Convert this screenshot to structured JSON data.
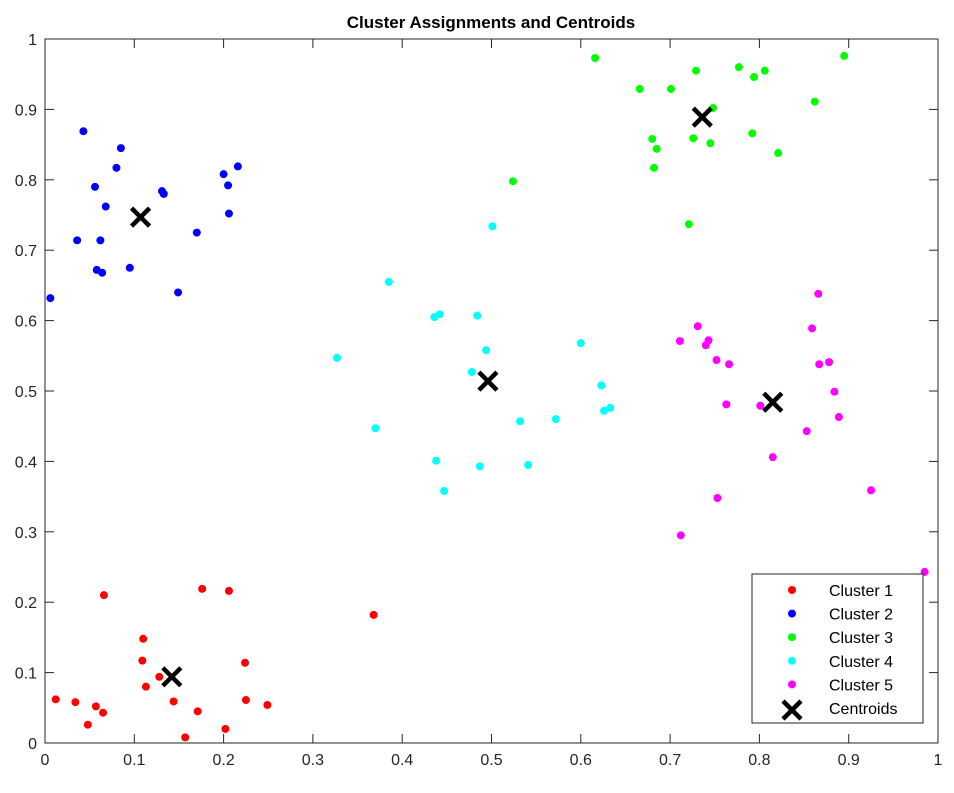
{
  "chart_data": {
    "type": "scatter",
    "title": "Cluster Assignments and Centroids",
    "xlabel": "",
    "ylabel": "",
    "xlim": [
      0,
      1
    ],
    "ylim": [
      0,
      1
    ],
    "grid": false,
    "legend_position": "southeast",
    "x_ticks": [
      "0",
      "0.1",
      "0.2",
      "0.3",
      "0.4",
      "0.5",
      "0.6",
      "0.7",
      "0.8",
      "0.9",
      "1"
    ],
    "y_ticks": [
      "0",
      "0.1",
      "0.2",
      "0.3",
      "0.4",
      "0.5",
      "0.6",
      "0.7",
      "0.8",
      "0.9",
      "1"
    ],
    "series": [
      {
        "name": "Cluster 1",
        "color": "#ff0000",
        "marker": "dot",
        "points": [
          [
            0.012,
            0.062
          ],
          [
            0.034,
            0.058
          ],
          [
            0.048,
            0.026
          ],
          [
            0.057,
            0.052
          ],
          [
            0.065,
            0.043
          ],
          [
            0.066,
            0.21
          ],
          [
            0.11,
            0.148
          ],
          [
            0.109,
            0.117
          ],
          [
            0.113,
            0.08
          ],
          [
            0.128,
            0.094
          ],
          [
            0.144,
            0.059
          ],
          [
            0.157,
            0.008
          ],
          [
            0.171,
            0.045
          ],
          [
            0.176,
            0.219
          ],
          [
            0.206,
            0.216
          ],
          [
            0.202,
            0.02
          ],
          [
            0.224,
            0.114
          ],
          [
            0.225,
            0.061
          ],
          [
            0.249,
            0.054
          ],
          [
            0.368,
            0.182
          ]
        ]
      },
      {
        "name": "Cluster 2",
        "color": "#0000ff",
        "marker": "dot",
        "points": [
          [
            0.006,
            0.632
          ],
          [
            0.043,
            0.869
          ],
          [
            0.085,
            0.845
          ],
          [
            0.08,
            0.817
          ],
          [
            0.056,
            0.79
          ],
          [
            0.068,
            0.762
          ],
          [
            0.036,
            0.714
          ],
          [
            0.062,
            0.714
          ],
          [
            0.058,
            0.672
          ],
          [
            0.064,
            0.668
          ],
          [
            0.095,
            0.675
          ],
          [
            0.131,
            0.784
          ],
          [
            0.133,
            0.78
          ],
          [
            0.149,
            0.64
          ],
          [
            0.17,
            0.725
          ],
          [
            0.2,
            0.808
          ],
          [
            0.205,
            0.792
          ],
          [
            0.206,
            0.752
          ],
          [
            0.216,
            0.819
          ]
        ]
      },
      {
        "name": "Cluster 3",
        "color": "#00ff00",
        "marker": "dot",
        "points": [
          [
            0.616,
            0.973
          ],
          [
            0.666,
            0.929
          ],
          [
            0.701,
            0.929
          ],
          [
            0.729,
            0.955
          ],
          [
            0.777,
            0.96
          ],
          [
            0.794,
            0.946
          ],
          [
            0.806,
            0.955
          ],
          [
            0.895,
            0.976
          ],
          [
            0.862,
            0.911
          ],
          [
            0.748,
            0.902
          ],
          [
            0.68,
            0.858
          ],
          [
            0.685,
            0.844
          ],
          [
            0.682,
            0.817
          ],
          [
            0.726,
            0.859
          ],
          [
            0.745,
            0.852
          ],
          [
            0.792,
            0.866
          ],
          [
            0.821,
            0.838
          ],
          [
            0.524,
            0.798
          ],
          [
            0.721,
            0.737
          ]
        ]
      },
      {
        "name": "Cluster 4",
        "color": "#00ffff",
        "marker": "dot",
        "points": [
          [
            0.501,
            0.734
          ],
          [
            0.385,
            0.655
          ],
          [
            0.436,
            0.605
          ],
          [
            0.442,
            0.609
          ],
          [
            0.484,
            0.607
          ],
          [
            0.494,
            0.558
          ],
          [
            0.327,
            0.547
          ],
          [
            0.6,
            0.568
          ],
          [
            0.478,
            0.527
          ],
          [
            0.623,
            0.508
          ],
          [
            0.633,
            0.476
          ],
          [
            0.626,
            0.472
          ],
          [
            0.572,
            0.46
          ],
          [
            0.532,
            0.457
          ],
          [
            0.37,
            0.447
          ],
          [
            0.438,
            0.401
          ],
          [
            0.487,
            0.393
          ],
          [
            0.541,
            0.395
          ],
          [
            0.447,
            0.358
          ]
        ]
      },
      {
        "name": "Cluster 5",
        "color": "#ff00ff",
        "marker": "dot",
        "points": [
          [
            0.866,
            0.638
          ],
          [
            0.731,
            0.592
          ],
          [
            0.859,
            0.589
          ],
          [
            0.711,
            0.571
          ],
          [
            0.743,
            0.572
          ],
          [
            0.74,
            0.565
          ],
          [
            0.752,
            0.544
          ],
          [
            0.766,
            0.538
          ],
          [
            0.867,
            0.538
          ],
          [
            0.878,
            0.541
          ],
          [
            0.884,
            0.499
          ],
          [
            0.763,
            0.481
          ],
          [
            0.801,
            0.479
          ],
          [
            0.889,
            0.463
          ],
          [
            0.853,
            0.443
          ],
          [
            0.815,
            0.406
          ],
          [
            0.925,
            0.359
          ],
          [
            0.753,
            0.348
          ],
          [
            0.712,
            0.295
          ],
          [
            0.985,
            0.243
          ]
        ]
      },
      {
        "name": "Centroids",
        "color": "#000000",
        "marker": "x",
        "points": [
          [
            0.142,
            0.094
          ],
          [
            0.107,
            0.747
          ],
          [
            0.736,
            0.889
          ],
          [
            0.496,
            0.514
          ],
          [
            0.815,
            0.484
          ]
        ]
      }
    ]
  }
}
